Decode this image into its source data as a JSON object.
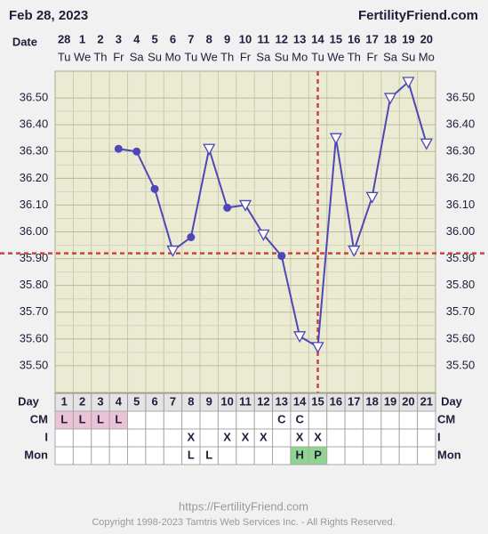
{
  "chart_data": {
    "type": "line",
    "title": "Feb 28, 2023",
    "site": "FertilityFriend.com",
    "date_label": "Date",
    "dates": [
      "28",
      "1",
      "2",
      "3",
      "4",
      "5",
      "6",
      "7",
      "8",
      "9",
      "10",
      "11",
      "12",
      "13",
      "14",
      "15",
      "16",
      "17",
      "18",
      "19",
      "20"
    ],
    "weekdays": [
      "Tu",
      "We",
      "Th",
      "Fr",
      "Sa",
      "Su",
      "Mo",
      "Tu",
      "We",
      "Th",
      "Fr",
      "Sa",
      "Su",
      "Mo",
      "Tu",
      "We",
      "Th",
      "Fr",
      "Sa",
      "Su",
      "Mo"
    ],
    "day_label": "Day",
    "days": [
      1,
      2,
      3,
      4,
      5,
      6,
      7,
      8,
      9,
      10,
      11,
      12,
      13,
      14,
      15,
      16,
      17,
      18,
      19,
      20,
      21
    ],
    "values": [
      null,
      null,
      null,
      36.31,
      36.3,
      36.16,
      35.93,
      35.98,
      36.31,
      36.09,
      36.1,
      35.99,
      35.91,
      35.61,
      35.57,
      36.35,
      35.93,
      36.13,
      36.5,
      36.56,
      36.33
    ],
    "markers": [
      null,
      null,
      null,
      "circle",
      "circle",
      "circle",
      "triangle",
      "circle",
      "triangle",
      "circle",
      "triangle",
      "triangle",
      "circle",
      "triangle",
      "triangle",
      "triangle",
      "triangle",
      "triangle",
      "triangle",
      "triangle",
      "triangle"
    ],
    "color": "#4f46b8",
    "ylim": [
      35.4,
      36.6
    ],
    "yticks": [
      {
        "value": 35.5,
        "label": "35.50"
      },
      {
        "value": 35.6,
        "label": "35.60"
      },
      {
        "value": 35.7,
        "label": "35.70"
      },
      {
        "value": 35.8,
        "label": "35.80"
      },
      {
        "value": 35.9,
        "label": "35.90"
      },
      {
        "value": 36.0,
        "label": "36.00"
      },
      {
        "value": 36.1,
        "label": "36.10"
      },
      {
        "value": 36.2,
        "label": "36.20"
      },
      {
        "value": 36.3,
        "label": "36.30"
      },
      {
        "value": 36.4,
        "label": "36.40"
      },
      {
        "value": 36.5,
        "label": "36.50"
      }
    ],
    "grid": true,
    "coverline": 35.92,
    "ovulation_day": 15,
    "marker_line_color": "#c8453a",
    "rows": [
      {
        "label": "CM",
        "cells": [
          "L",
          "L",
          "L",
          "L",
          null,
          null,
          null,
          null,
          null,
          null,
          null,
          null,
          "C",
          "C",
          null,
          null,
          null,
          null,
          null,
          null,
          null
        ]
      },
      {
        "label": "I",
        "cells": [
          null,
          null,
          null,
          null,
          null,
          null,
          null,
          "X",
          null,
          "X",
          "X",
          "X",
          null,
          "X",
          "X",
          null,
          null,
          null,
          null,
          null,
          null
        ]
      },
      {
        "label": "Mon",
        "cells": [
          null,
          null,
          null,
          null,
          null,
          null,
          null,
          "L",
          "L",
          null,
          null,
          null,
          null,
          "H",
          "P",
          null,
          null,
          null,
          null,
          null,
          null
        ]
      }
    ],
    "highlights": [
      {
        "row": "CM",
        "text": "L",
        "color": "#ecc3d6"
      },
      {
        "row": "Mon",
        "text": "H",
        "color": "#8fd48f"
      },
      {
        "row": "Mon",
        "text": "P",
        "color": "#8fd48f"
      }
    ],
    "footer_url": "https://FertilityFriend.com",
    "copyright": "Copyright 1998-2023 Tamtris Web Services Inc. - All Rights Reserved."
  }
}
